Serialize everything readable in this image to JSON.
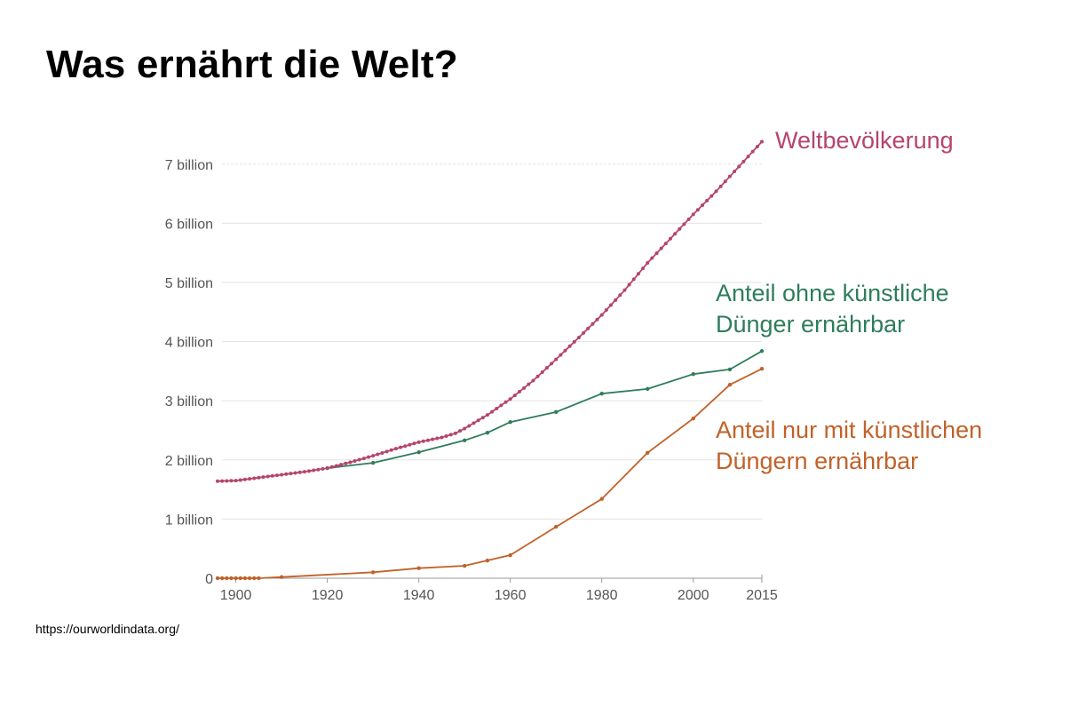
{
  "slide": {
    "title": "Was ernährt die Welt?",
    "source": "https://ourworldindata.org/"
  },
  "chart_data": {
    "type": "line",
    "title": "Was ernährt die Welt?",
    "xlabel": "",
    "ylabel": "",
    "xlim": [
      1896,
      2015
    ],
    "ylim": [
      0,
      7.5
    ],
    "grid": true,
    "x_ticks": [
      {
        "value": 1900,
        "label": "1900"
      },
      {
        "value": 1920,
        "label": "1920"
      },
      {
        "value": 1940,
        "label": "1940"
      },
      {
        "value": 1960,
        "label": "1960"
      },
      {
        "value": 1980,
        "label": "1980"
      },
      {
        "value": 2000,
        "label": "2000"
      },
      {
        "value": 2015,
        "label": "2015"
      }
    ],
    "y_ticks": [
      {
        "value": 0,
        "label": "0"
      },
      {
        "value": 1,
        "label": "1 billion"
      },
      {
        "value": 2,
        "label": "2 billion"
      },
      {
        "value": 3,
        "label": "3 billion"
      },
      {
        "value": 4,
        "label": "4 billion"
      },
      {
        "value": 5,
        "label": "5 billion"
      },
      {
        "value": 6,
        "label": "6 billion"
      },
      {
        "value": 7,
        "label": "7 billion"
      }
    ],
    "legend_placement": "right (direct labels)",
    "series": [
      {
        "name": "Weltbevölkerung",
        "label_lines": [
          "Weltbevölkerung"
        ],
        "color": "#b5446e",
        "unit": "billion",
        "dense_markers": true,
        "points": [
          [
            1896,
            1.64
          ],
          [
            1900,
            1.65
          ],
          [
            1905,
            1.7
          ],
          [
            1910,
            1.75
          ],
          [
            1915,
            1.8
          ],
          [
            1920,
            1.86
          ],
          [
            1925,
            1.96
          ],
          [
            1930,
            2.07
          ],
          [
            1935,
            2.19
          ],
          [
            1940,
            2.3
          ],
          [
            1945,
            2.38
          ],
          [
            1948,
            2.45
          ],
          [
            1950,
            2.53
          ],
          [
            1955,
            2.76
          ],
          [
            1960,
            3.03
          ],
          [
            1965,
            3.34
          ],
          [
            1970,
            3.7
          ],
          [
            1975,
            4.07
          ],
          [
            1980,
            4.45
          ],
          [
            1985,
            4.87
          ],
          [
            1990,
            5.33
          ],
          [
            1995,
            5.74
          ],
          [
            2000,
            6.15
          ],
          [
            2005,
            6.54
          ],
          [
            2010,
            6.96
          ],
          [
            2015,
            7.38
          ]
        ]
      },
      {
        "name": "Anteil ohne künstliche Dünger ernährbar",
        "label_lines": [
          "Anteil ohne künstliche",
          "Dünger ernährbar"
        ],
        "color": "#2e7d5b",
        "unit": "billion",
        "dense_markers": false,
        "points": [
          [
            1920,
            1.86
          ],
          [
            1930,
            1.95
          ],
          [
            1940,
            2.13
          ],
          [
            1950,
            2.33
          ],
          [
            1955,
            2.46
          ],
          [
            1960,
            2.64
          ],
          [
            1970,
            2.81
          ],
          [
            1980,
            3.12
          ],
          [
            1990,
            3.2
          ],
          [
            2000,
            3.45
          ],
          [
            2008,
            3.53
          ],
          [
            2015,
            3.84
          ]
        ]
      },
      {
        "name": "Anteil nur mit künstlichen Düngern ernährbar",
        "label_lines": [
          "Anteil nur mit künstlichen",
          "Düngern ernährbar"
        ],
        "color": "#c0622a",
        "unit": "billion",
        "dense_markers": false,
        "points": [
          [
            1896,
            0
          ],
          [
            1897,
            0
          ],
          [
            1898,
            0
          ],
          [
            1899,
            0
          ],
          [
            1900,
            0
          ],
          [
            1901,
            0
          ],
          [
            1902,
            0
          ],
          [
            1903,
            0
          ],
          [
            1904,
            0
          ],
          [
            1905,
            0
          ],
          [
            1910,
            0.02
          ],
          [
            1930,
            0.1
          ],
          [
            1940,
            0.17
          ],
          [
            1950,
            0.21
          ],
          [
            1955,
            0.3
          ],
          [
            1960,
            0.39
          ],
          [
            1970,
            0.87
          ],
          [
            1980,
            1.34
          ],
          [
            1990,
            2.12
          ],
          [
            2000,
            2.7
          ],
          [
            2008,
            3.27
          ],
          [
            2015,
            3.54
          ]
        ]
      }
    ]
  }
}
